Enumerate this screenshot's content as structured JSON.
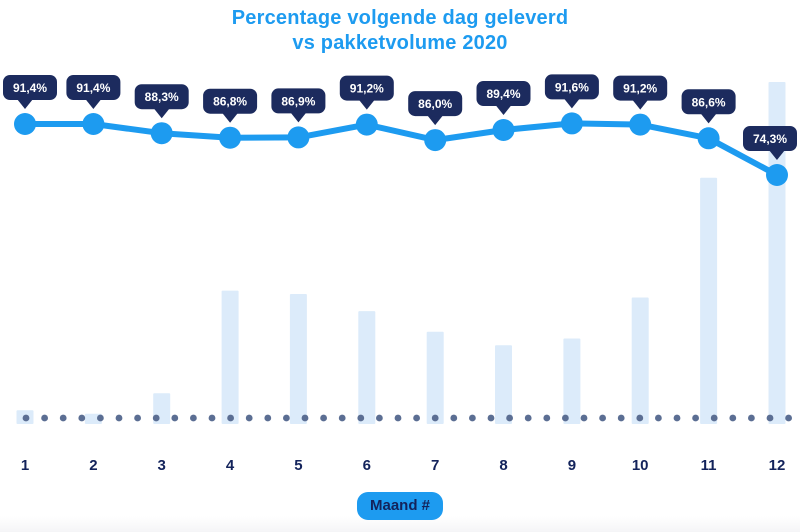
{
  "title": {
    "line1": "Percentage volgende dag geleverd",
    "line2": "vs pakketvolume 2020"
  },
  "xaxis": {
    "badge_label": "Maand #"
  },
  "colors": {
    "accent_blue": "#1d9bf0",
    "tooltip_navy": "#1c2b5e",
    "bar_light_blue": "#dcebfa",
    "dot_slate": "#5b6e93",
    "axis_navy": "#13235b",
    "tooltip_text": "#ffffff"
  },
  "chart_data": {
    "type": "combo",
    "title": "Percentage volgende dag geleverd vs pakketvolume 2020",
    "categories": [
      "1",
      "2",
      "3",
      "4",
      "5",
      "6",
      "7",
      "8",
      "9",
      "10",
      "11",
      "12"
    ],
    "xlabel": "Maand #",
    "legend": "none",
    "grid": "off",
    "baseline_style": "dotted",
    "series": [
      {
        "name": "Percentage volgende dag geleverd",
        "type": "line",
        "unit": "%",
        "ylim": [
          70,
          95
        ],
        "values": [
          91.4,
          91.4,
          88.3,
          86.8,
          86.9,
          91.2,
          86.0,
          89.4,
          91.6,
          91.2,
          86.6,
          74.3
        ],
        "labels": [
          "91,4%",
          "91,4%",
          "88,3%",
          "86,8%",
          "86,9%",
          "91,2%",
          "86,0%",
          "89,4%",
          "91,6%",
          "91,2%",
          "86,6%",
          "74,3%"
        ]
      },
      {
        "name": "Pakketvolume 2020",
        "type": "bar",
        "unit": "relative volume (% of December peak, axis unlabeled)",
        "values": [
          4,
          3,
          9,
          39,
          38,
          33,
          27,
          23,
          25,
          37,
          72,
          100
        ]
      }
    ]
  }
}
